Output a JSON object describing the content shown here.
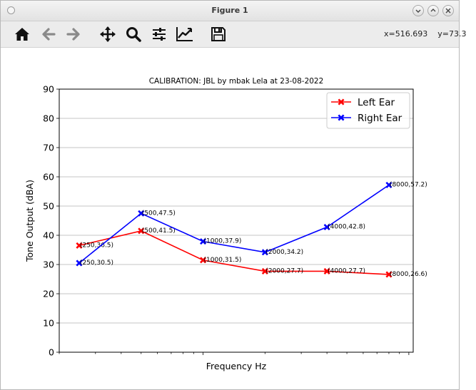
{
  "window": {
    "title": "Figure 1"
  },
  "toolbar": {
    "buttons": [
      "home-icon",
      "back-icon",
      "forward-icon",
      "pan-icon",
      "zoom-icon",
      "subplots-icon",
      "edit-axes-icon",
      "save-icon"
    ],
    "coord_x": "x=516.693",
    "coord_y": "y=73.3"
  },
  "colors": {
    "left": "#ff0000",
    "right": "#0000ff",
    "grid": "#b0b0b0"
  },
  "chart_data": {
    "type": "line",
    "title": "CALIBRATION: JBL by mbak Lela at 23-08-2022",
    "xlabel": "Frequency Hz",
    "ylabel": "Tone Output (dBA)",
    "xscale": "log",
    "xlim": [
      200,
      10500
    ],
    "ylim": [
      0,
      90
    ],
    "yticks": [
      0,
      10,
      20,
      30,
      40,
      50,
      60,
      70,
      80,
      90
    ],
    "grid": "y-major",
    "legend_position": "top-right",
    "x": [
      250,
      500,
      1000,
      2000,
      4000,
      8000
    ],
    "series": [
      {
        "name": "Left Ear",
        "color": "#ff0000",
        "marker": "X",
        "values": [
          36.5,
          41.5,
          31.5,
          27.7,
          27.7,
          26.6
        ],
        "labels": [
          "(250,36.5)",
          "(500,41.5)",
          "(1000,31.5)",
          "(2000,27.7)",
          "(4000,27.7)",
          "(8000,26.6)"
        ]
      },
      {
        "name": "Right Ear",
        "color": "#0000ff",
        "marker": "X",
        "values": [
          30.5,
          47.5,
          37.9,
          34.2,
          42.8,
          57.2
        ],
        "labels": [
          "(250,30.5)",
          "(500,47.5)",
          "(1000,37.9)",
          "(2000,34.2)",
          "(4000,42.8)",
          "(8000,57.2)"
        ]
      }
    ]
  }
}
